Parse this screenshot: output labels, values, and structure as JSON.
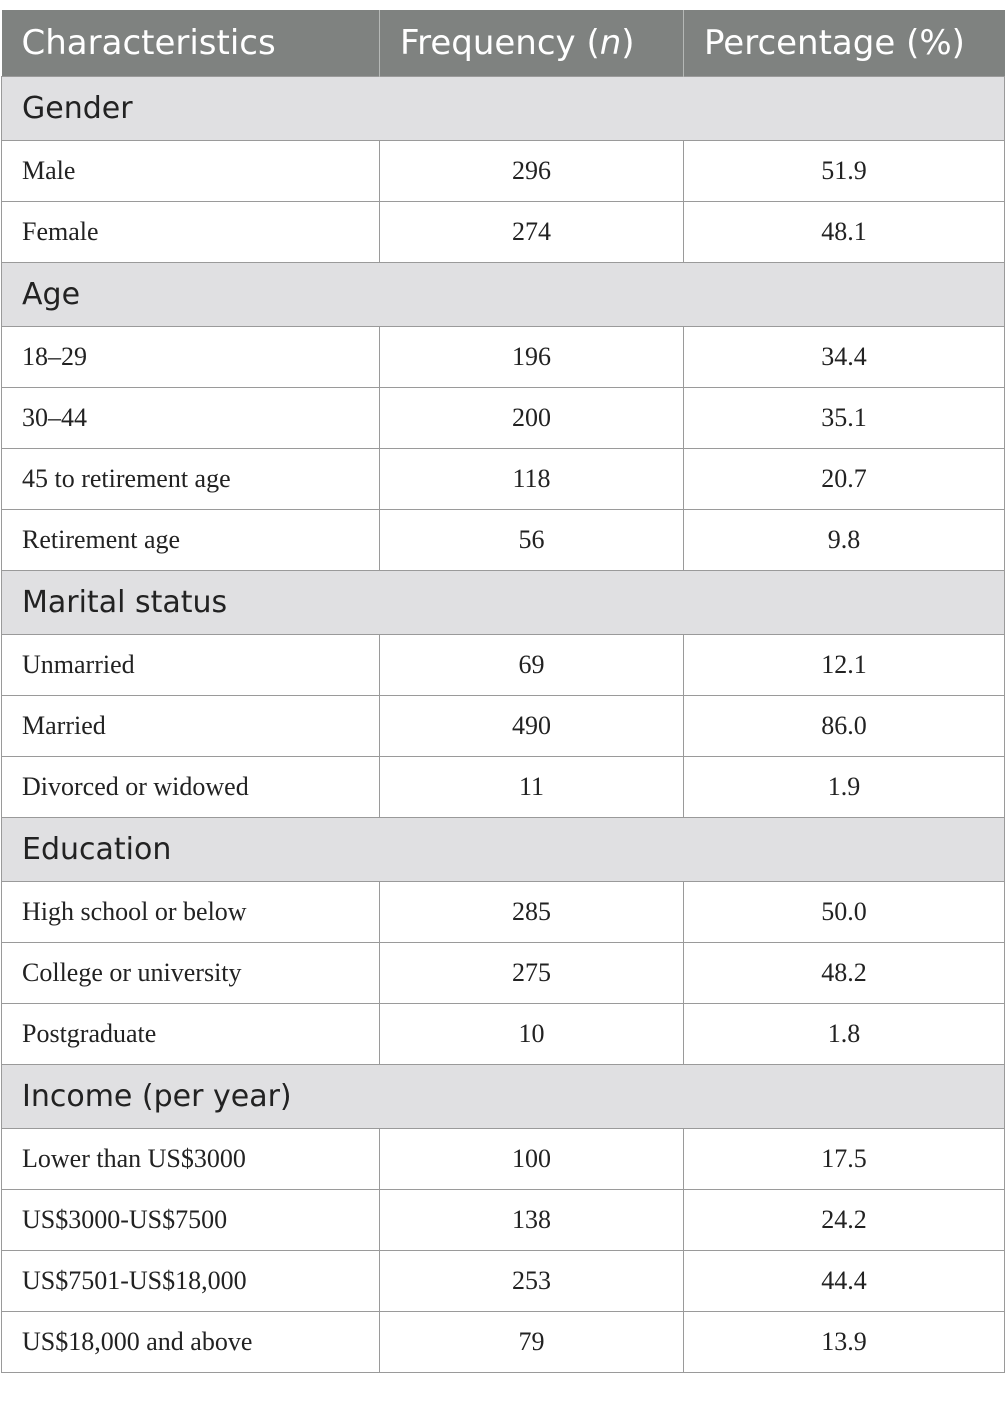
{
  "table": {
    "headers": {
      "characteristics": "Characteristics",
      "frequency_prefix": "Frequency (",
      "frequency_italic": "n",
      "frequency_suffix": ")",
      "percentage": "Percentage (%)"
    },
    "sections": [
      {
        "title": "Gender",
        "rows": [
          {
            "label": "Male",
            "frequency": "296",
            "percentage": "51.9"
          },
          {
            "label": "Female",
            "frequency": "274",
            "percentage": "48.1"
          }
        ]
      },
      {
        "title": "Age",
        "rows": [
          {
            "label": "18–29",
            "frequency": "196",
            "percentage": "34.4"
          },
          {
            "label": "30–44",
            "frequency": "200",
            "percentage": "35.1"
          },
          {
            "label": "45 to retirement age",
            "frequency": "118",
            "percentage": "20.7"
          },
          {
            "label": "Retirement age",
            "frequency": "56",
            "percentage": "9.8"
          }
        ]
      },
      {
        "title": "Marital status",
        "rows": [
          {
            "label": "Unmarried",
            "frequency": "69",
            "percentage": "12.1"
          },
          {
            "label": "Married",
            "frequency": "490",
            "percentage": "86.0"
          },
          {
            "label": "Divorced or widowed",
            "frequency": "11",
            "percentage": "1.9"
          }
        ]
      },
      {
        "title": "Education",
        "rows": [
          {
            "label": "High school or below",
            "frequency": "285",
            "percentage": "50.0"
          },
          {
            "label": "College or university",
            "frequency": "275",
            "percentage": "48.2"
          },
          {
            "label": "Postgraduate",
            "frequency": "10",
            "percentage": "1.8"
          }
        ]
      },
      {
        "title": "Income (per year)",
        "rows": [
          {
            "label": "Lower than US$3000",
            "frequency": "100",
            "percentage": "17.5"
          },
          {
            "label": "US$3000-US$7500",
            "frequency": "138",
            "percentage": "24.2"
          },
          {
            "label": "US$7501-US$18,000",
            "frequency": "253",
            "percentage": "44.4"
          },
          {
            "label": "US$18,000 and above",
            "frequency": "79",
            "percentage": "13.9"
          }
        ]
      }
    ]
  },
  "colors": {
    "header_bg": "#7f8280",
    "header_text": "#ffffff",
    "section_bg": "#e0e0e2",
    "border": "#9a9a9a"
  }
}
